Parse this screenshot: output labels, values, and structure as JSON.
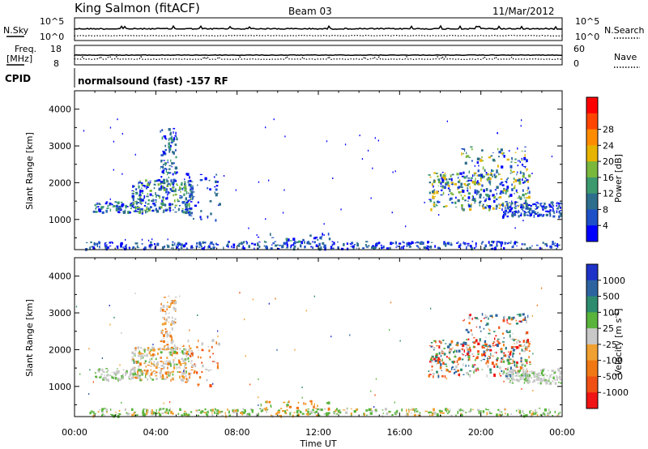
{
  "header": {
    "title": "King Salmon (fitACF)",
    "beam": "Beam 03",
    "date": "11/Mar/2012"
  },
  "top_panels": {
    "nsky": {
      "label": "N.Sky",
      "ticks": [
        "10^5",
        "10^0"
      ]
    },
    "nsearch": {
      "label": "N.Search",
      "ticks": [
        "10^5",
        "10^0"
      ]
    },
    "freq": {
      "label_line1": "Freq.",
      "label_line2": "[MHz]",
      "ticks": [
        "18",
        "8"
      ]
    },
    "nave": {
      "label": "Nave",
      "ticks": [
        "60",
        "0"
      ]
    },
    "cpid": {
      "label": "CPID",
      "text": "normalsound (fast) -157 RF"
    }
  },
  "chart_data": [
    {
      "type": "heatmap",
      "name": "power",
      "ylabel": "Slant Range [km]",
      "xlabel": "Time UT",
      "x_ticks": [
        "00:00",
        "04:00",
        "08:00",
        "12:00",
        "16:00",
        "20:00",
        "00:00"
      ],
      "y_ticks": [
        1000,
        2000,
        3000,
        4000
      ],
      "ylim": [
        180,
        4500
      ],
      "xlim": [
        0,
        24
      ],
      "colorbar": {
        "label": "Power [dB]",
        "ticks": [
          "4",
          "8",
          "12",
          "16",
          "20",
          "24",
          "28"
        ],
        "colors": [
          "#0000ff",
          "#1e50c8",
          "#2d6e8c",
          "#3c9a6e",
          "#7ab83c",
          "#e6b400",
          "#ff8c00",
          "#ff4500",
          "#ff0000"
        ]
      }
    },
    {
      "type": "heatmap",
      "name": "velocity",
      "ylabel": "Slant Range [km]",
      "xlabel": "Time UT",
      "x_ticks": [
        "00:00",
        "04:00",
        "08:00",
        "12:00",
        "16:00",
        "20:00",
        "00:00"
      ],
      "y_ticks": [
        1000,
        2000,
        3000,
        4000
      ],
      "ylim": [
        180,
        4500
      ],
      "xlim": [
        0,
        24
      ],
      "colorbar": {
        "label_main": "Velocity [m s",
        "label_sup": "-1",
        "label_end": "]",
        "ticks": [
          "1000",
          "500",
          "100",
          "25",
          "-25",
          "-100",
          "-500",
          "-1000"
        ],
        "colors": [
          "#1e32c8",
          "#2d64a0",
          "#2d8c6e",
          "#5ab43c",
          "#c8c8c8",
          "#f0a030",
          "#f07814",
          "#f05014",
          "#f01414"
        ]
      }
    }
  ]
}
